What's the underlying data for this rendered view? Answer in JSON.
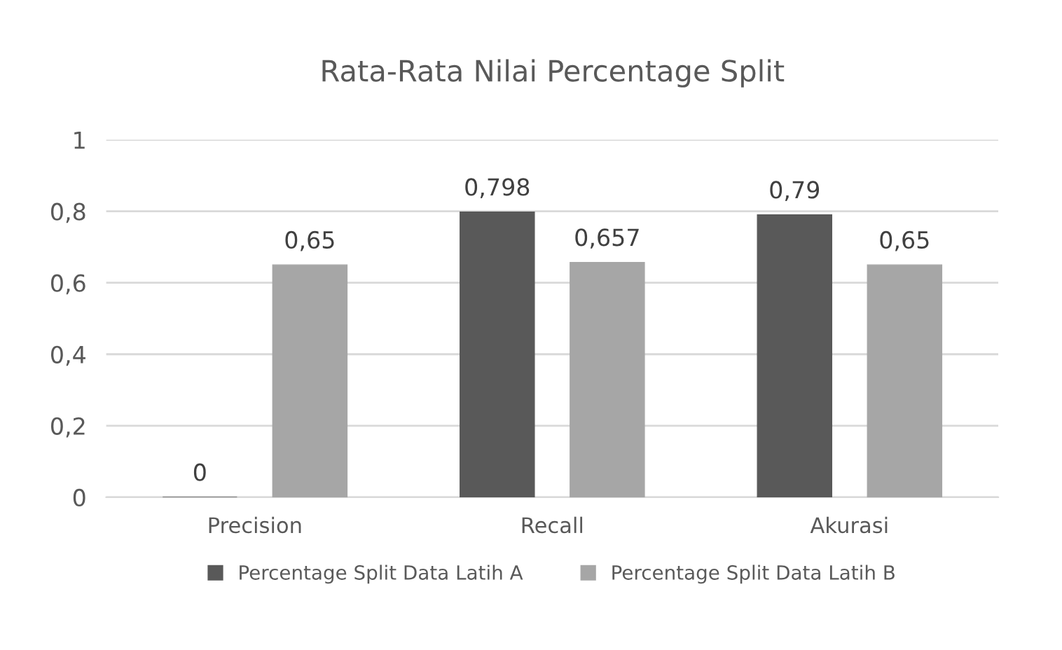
{
  "chart_data": {
    "type": "bar",
    "title": "Rata-Rata Nilai Percentage Split",
    "categories": [
      "Precision",
      "Recall",
      "Akurasi"
    ],
    "series": [
      {
        "name": "Percentage Split Data Latih A",
        "color": "#595959",
        "values": [
          0,
          0.798,
          0.79
        ],
        "value_labels": [
          "0",
          "0,798",
          "0,79"
        ]
      },
      {
        "name": "Percentage Split Data Latih B",
        "color": "#a6a6a6",
        "values": [
          0.65,
          0.657,
          0.65
        ],
        "value_labels": [
          "0,65",
          "0,657",
          "0,65"
        ]
      }
    ],
    "ylim": [
      0,
      1
    ],
    "yticks": [
      {
        "value": 0,
        "label": "0"
      },
      {
        "value": 0.2,
        "label": "0,2"
      },
      {
        "value": 0.4,
        "label": "0,4"
      },
      {
        "value": 0.6,
        "label": "0,6"
      },
      {
        "value": 0.8,
        "label": "0,8"
      },
      {
        "value": 1,
        "label": "1"
      }
    ],
    "grid": "y",
    "legend": "bottom"
  }
}
